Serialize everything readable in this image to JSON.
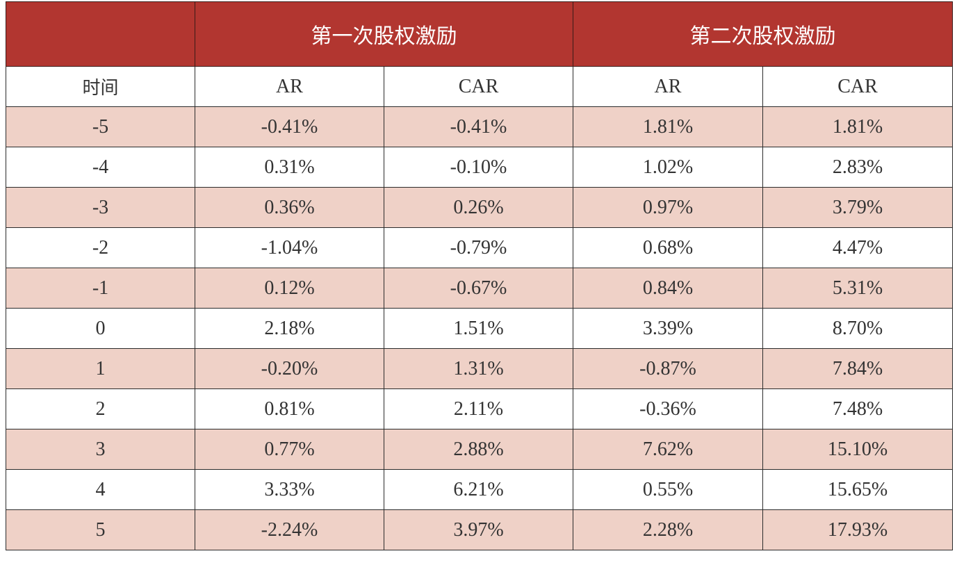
{
  "chart_data": {
    "type": "table",
    "group_headers": [
      "",
      "第一次股权激励",
      "第二次股权激励"
    ],
    "columns": [
      "时间",
      "AR",
      "CAR",
      "AR",
      "CAR"
    ],
    "rows": [
      [
        "-5",
        "-0.41%",
        "-0.41%",
        "1.81%",
        "1.81%"
      ],
      [
        "-4",
        "0.31%",
        "-0.10%",
        "1.02%",
        "2.83%"
      ],
      [
        "-3",
        "0.36%",
        "0.26%",
        "0.97%",
        "3.79%"
      ],
      [
        "-2",
        "-1.04%",
        "-0.79%",
        "0.68%",
        "4.47%"
      ],
      [
        "-1",
        "0.12%",
        "-0.67%",
        "0.84%",
        "5.31%"
      ],
      [
        "0",
        "2.18%",
        "1.51%",
        "3.39%",
        "8.70%"
      ],
      [
        "1",
        "-0.20%",
        "1.31%",
        "-0.87%",
        "7.84%"
      ],
      [
        "2",
        "0.81%",
        "2.11%",
        "-0.36%",
        "7.48%"
      ],
      [
        "3",
        "0.77%",
        "2.88%",
        "7.62%",
        "15.10%"
      ],
      [
        "4",
        "3.33%",
        "6.21%",
        "0.55%",
        "15.65%"
      ],
      [
        "5",
        "-2.24%",
        "3.97%",
        "2.28%",
        "17.93%"
      ]
    ]
  },
  "colors": {
    "header_red": "#b23630",
    "row_shade": "#efd1c7",
    "text": "#333333",
    "border": "#2b2b2b"
  }
}
